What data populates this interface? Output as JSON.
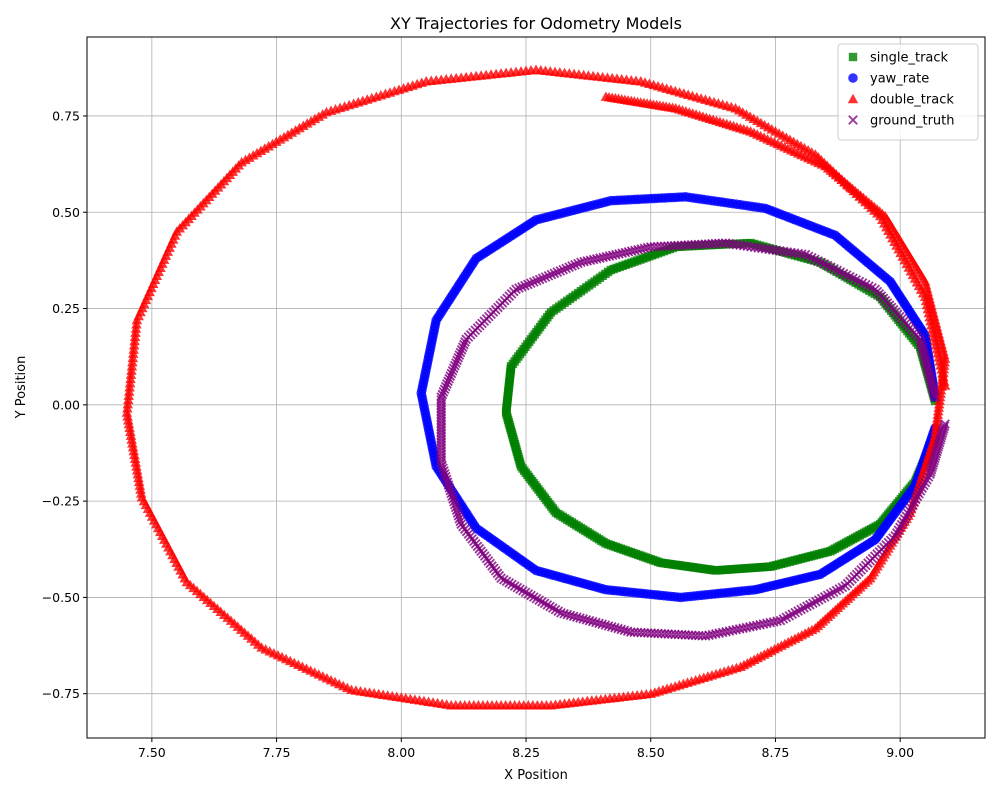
{
  "chart_data": {
    "type": "scatter",
    "title": "XY Trajectories for Odometry Models",
    "xlabel": "X Position",
    "ylabel": "Y Position",
    "xlim": [
      7.37,
      9.17
    ],
    "ylim": [
      -0.865,
      0.955
    ],
    "xticks": [
      7.5,
      7.75,
      8.0,
      8.25,
      8.5,
      8.75,
      9.0
    ],
    "xtick_labels": [
      "7.50",
      "7.75",
      "8.00",
      "8.25",
      "8.50",
      "8.75",
      "9.00"
    ],
    "yticks": [
      -0.75,
      -0.5,
      -0.25,
      0.0,
      0.25,
      0.5,
      0.75
    ],
    "ytick_labels": [
      "−0.75",
      "−0.50",
      "−0.25",
      "0.00",
      "0.25",
      "0.50",
      "0.75"
    ],
    "grid": true,
    "legend_position": "top-right",
    "series": [
      {
        "name": "single_track",
        "marker": "square",
        "color": "#008000",
        "x": [
          9.07,
          9.04,
          8.96,
          8.84,
          8.7,
          8.55,
          8.42,
          8.3,
          8.22,
          8.21,
          8.24,
          8.31,
          8.41,
          8.52,
          8.63,
          8.74,
          8.86,
          8.96,
          9.03,
          9.07
        ],
        "y": [
          0.01,
          0.15,
          0.28,
          0.37,
          0.42,
          0.41,
          0.35,
          0.24,
          0.1,
          -0.02,
          -0.16,
          -0.28,
          -0.36,
          -0.41,
          -0.43,
          -0.42,
          -0.38,
          -0.31,
          -0.2,
          -0.08
        ]
      },
      {
        "name": "yaw_rate",
        "marker": "circle",
        "color": "#0000ff",
        "x": [
          9.07,
          9.05,
          8.98,
          8.87,
          8.73,
          8.57,
          8.42,
          8.27,
          8.15,
          8.07,
          8.04,
          8.07,
          8.15,
          8.27,
          8.41,
          8.56,
          8.71,
          8.84,
          8.95,
          9.03,
          9.07
        ],
        "y": [
          0.02,
          0.18,
          0.32,
          0.44,
          0.51,
          0.54,
          0.53,
          0.48,
          0.38,
          0.22,
          0.03,
          -0.16,
          -0.32,
          -0.43,
          -0.48,
          -0.5,
          -0.48,
          -0.44,
          -0.35,
          -0.21,
          -0.06
        ]
      },
      {
        "name": "double_track",
        "marker": "triangle",
        "color": "#ff0000",
        "x": [
          8.41,
          8.55,
          8.7,
          8.85,
          8.97,
          9.05,
          9.09,
          9.07,
          9.02,
          8.94,
          8.83,
          8.68,
          8.5,
          8.3,
          8.1,
          7.9,
          7.72,
          7.57,
          7.48,
          7.45,
          7.47,
          7.55,
          7.68,
          7.85,
          8.05,
          8.27,
          8.48,
          8.67,
          8.83,
          8.96,
          9.05,
          9.09
        ],
        "y": [
          0.8,
          0.77,
          0.71,
          0.62,
          0.49,
          0.32,
          0.12,
          -0.08,
          -0.28,
          -0.45,
          -0.58,
          -0.68,
          -0.75,
          -0.78,
          -0.78,
          -0.74,
          -0.63,
          -0.46,
          -0.24,
          -0.02,
          0.22,
          0.45,
          0.63,
          0.76,
          0.84,
          0.87,
          0.84,
          0.77,
          0.65,
          0.49,
          0.28,
          0.05
        ]
      },
      {
        "name": "ground_truth",
        "marker": "x",
        "color": "#800080",
        "x": [
          9.07,
          9.04,
          8.95,
          8.81,
          8.65,
          8.5,
          8.36,
          8.23,
          8.13,
          8.08,
          8.08,
          8.12,
          8.2,
          8.32,
          8.46,
          8.61,
          8.76,
          8.89,
          8.99,
          9.06,
          9.09
        ],
        "y": [
          0.02,
          0.17,
          0.3,
          0.39,
          0.42,
          0.41,
          0.37,
          0.3,
          0.17,
          0.02,
          -0.15,
          -0.31,
          -0.45,
          -0.54,
          -0.59,
          -0.6,
          -0.56,
          -0.47,
          -0.34,
          -0.18,
          -0.05
        ]
      }
    ]
  }
}
